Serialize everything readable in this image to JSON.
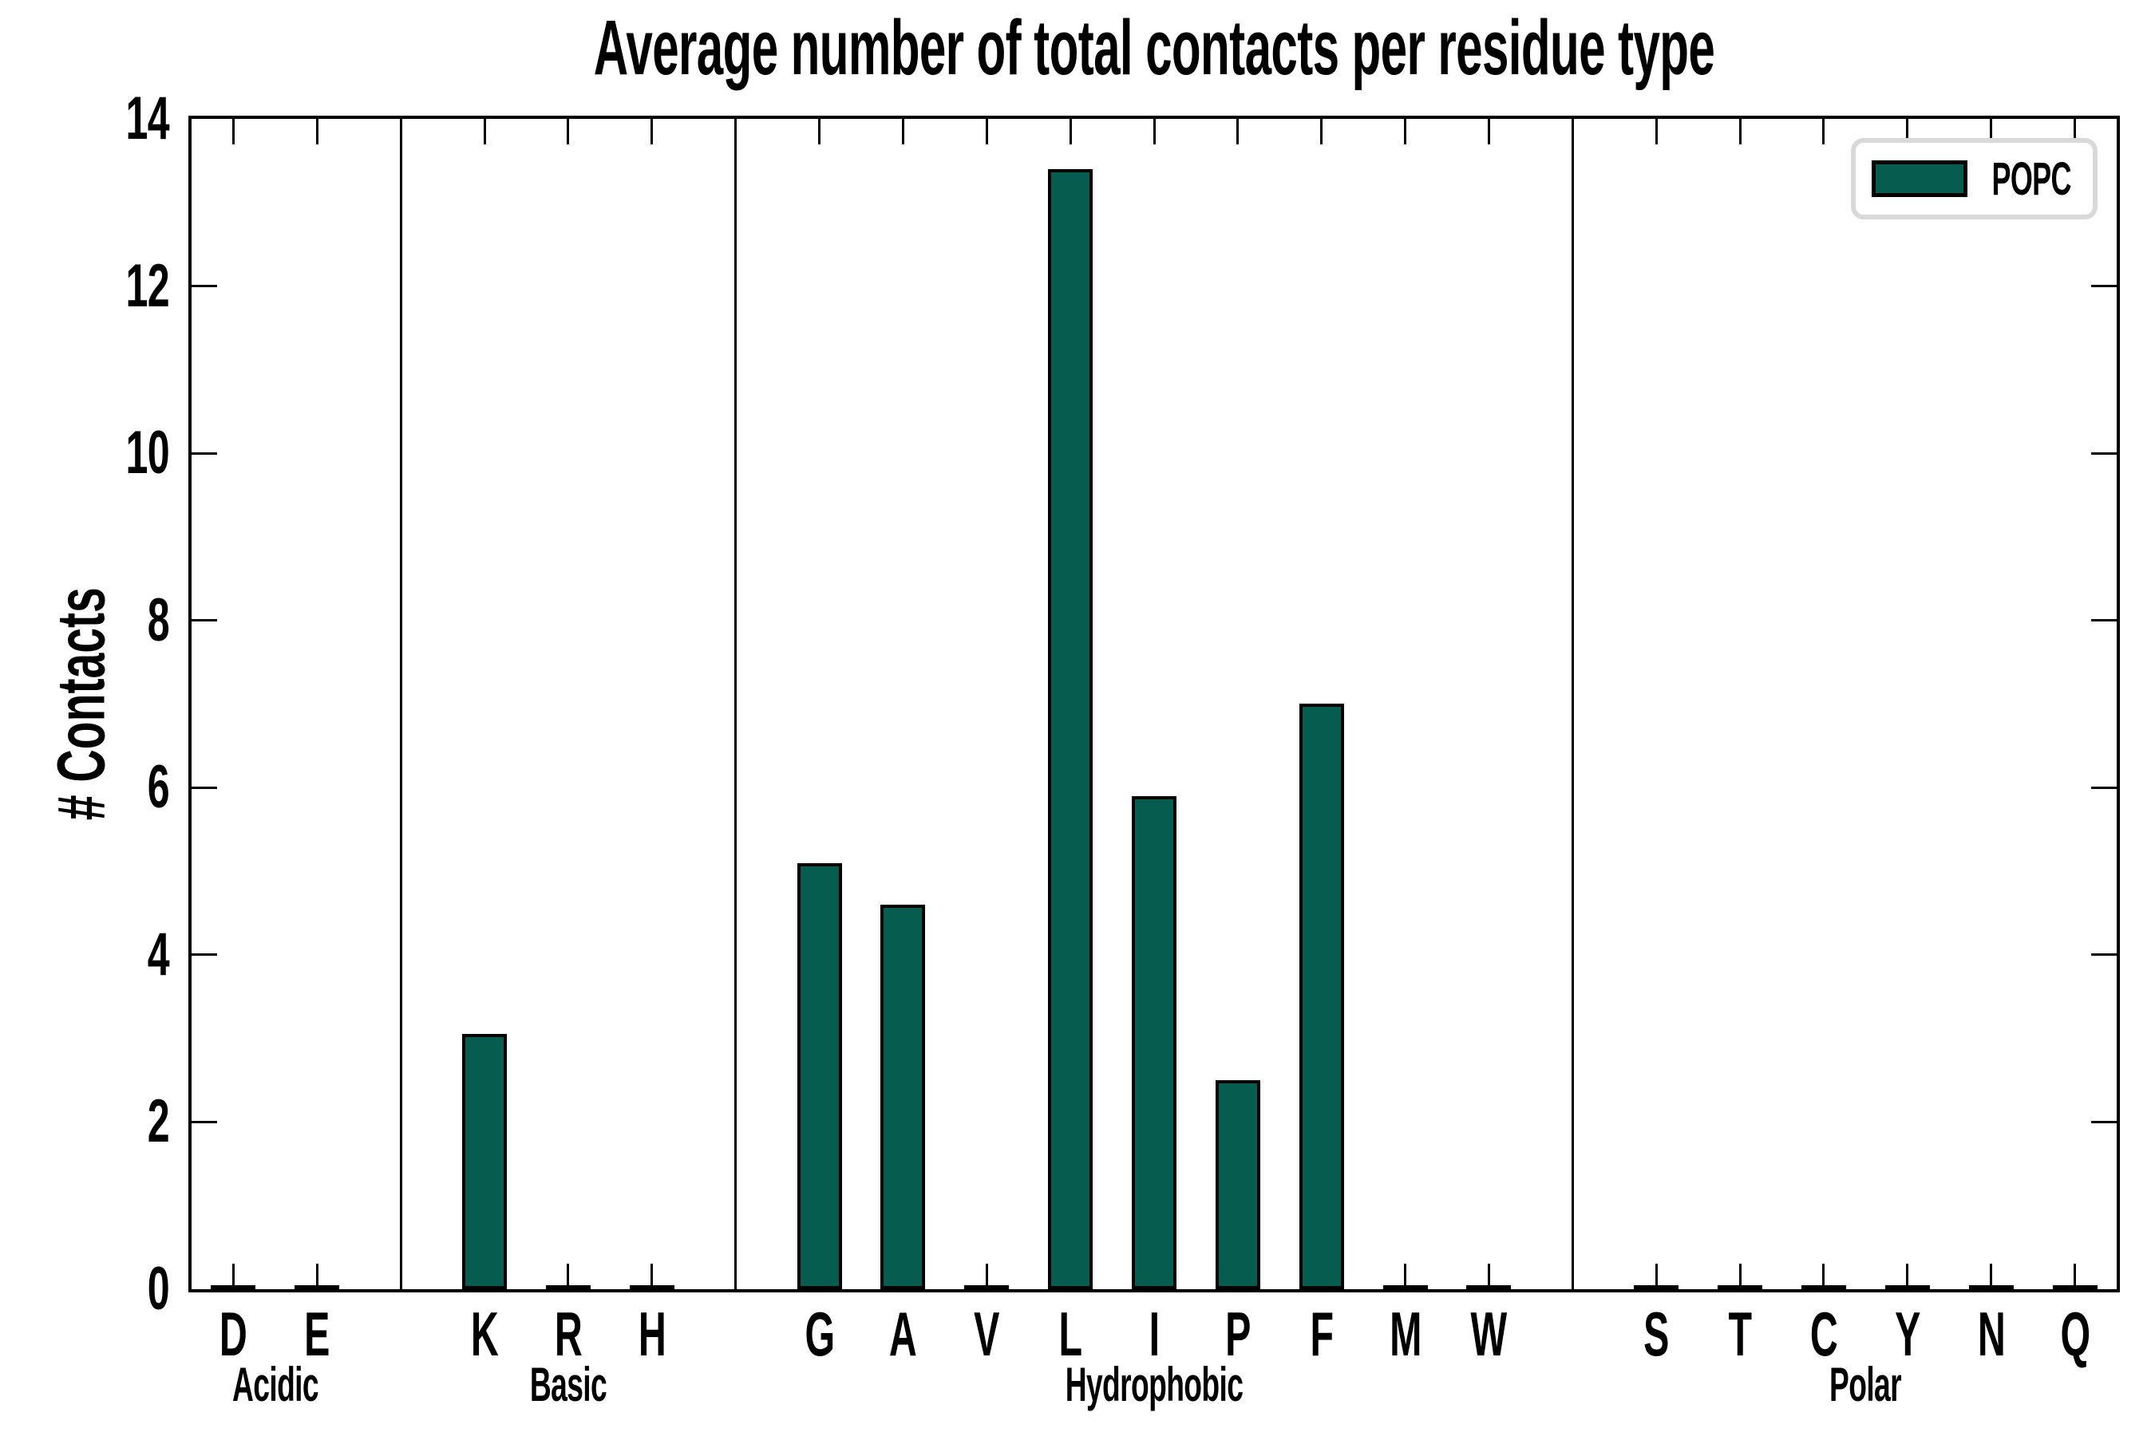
{
  "title": "Average number of total contacts per residue type",
  "y_axis": {
    "label": "# Contacts",
    "tick_labels": [
      "0",
      "2",
      "4",
      "6",
      "8",
      "10",
      "12",
      "14"
    ]
  },
  "legend": {
    "label": "POPC"
  },
  "colors": {
    "bar_fill": "#065C4F",
    "bar_edge": "#000000",
    "legend_border": "#d9d9d9"
  },
  "chart_data": {
    "type": "bar",
    "title": "Average number of total contacts per residue type",
    "xlabel": "",
    "ylabel": "# Contacts",
    "ylim": [
      0,
      14
    ],
    "ytick_step": 2,
    "grid": false,
    "legend_entries": [
      "POPC"
    ],
    "legend_position": "upper right",
    "bar_color": "#065C4F",
    "bar_edge_color": "#000000",
    "groups": [
      {
        "label": "Acidic",
        "categories": [
          "D",
          "E"
        ],
        "values": [
          0,
          0
        ]
      },
      {
        "label": "Basic",
        "categories": [
          "K",
          "R",
          "H"
        ],
        "values": [
          3.05,
          0,
          0
        ]
      },
      {
        "label": "Hydrophobic",
        "categories": [
          "G",
          "A",
          "V",
          "L",
          "I",
          "P",
          "F",
          "M",
          "W"
        ],
        "values": [
          5.1,
          4.6,
          0,
          13.4,
          5.9,
          2.5,
          7.0,
          0,
          0
        ]
      },
      {
        "label": "Polar",
        "categories": [
          "S",
          "T",
          "C",
          "Y",
          "N",
          "Q"
        ],
        "values": [
          0,
          0,
          0,
          0,
          0,
          0
        ]
      }
    ]
  }
}
